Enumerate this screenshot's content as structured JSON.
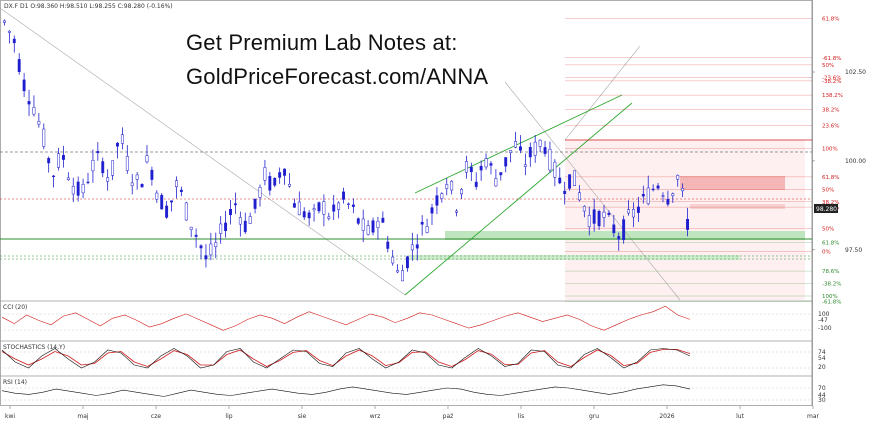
{
  "header": {
    "symbol_line": "DX.F  D1  O:98.360  H:98.510  L:98.255  C:98.280  (-0.16%)",
    "promo_line1": "Get Premium Lab Notes at:",
    "promo_line2": "GoldPriceForecast.com/ANNA"
  },
  "colors": {
    "candle": "#1f1fcf",
    "fib_red": "#d11b1b",
    "fib_green": "#2e8b2e",
    "channel": "#2fa82f",
    "cci": "#d11b1b",
    "stoch_k": "#111111",
    "stoch_d": "#d11b1b",
    "rsi": "#111111",
    "zone_red": "#f4b6b6",
    "zone_green": "#bfe5bf"
  },
  "chart_data": [
    {
      "type": "candlestick",
      "panel": "price",
      "title": "DX.F  D1",
      "ylim": [
        96.2,
        104.3
      ],
      "x_tick_labels": [
        "kwi",
        "maj",
        "cze",
        "lip",
        "sie",
        "wrz",
        "paź",
        "lis",
        "gru",
        "2026",
        "lut",
        "mar"
      ],
      "y_tick_labels": [
        "102.50",
        "100.00",
        "97.50"
      ],
      "last_price": "98.280",
      "close_path": [
        103.9,
        103.4,
        102.2,
        101.6,
        100.7,
        99.6,
        100.2,
        99.4,
        99.0,
        99.8,
        100.1,
        99.4,
        100.8,
        99.7,
        99.3,
        100.1,
        99.0,
        98.6,
        99.4,
        98.5,
        97.9,
        97.2,
        97.6,
        98.3,
        98.8,
        98.2,
        98.6,
        99.6,
        99.2,
        100.0,
        98.9,
        98.6,
        98.3,
        98.8,
        98.4,
        98.9,
        98.7,
        98.2,
        97.9,
        98.5,
        97.6,
        96.7,
        97.3,
        97.9,
        98.3,
        99.0,
        99.5,
        98.8,
        99.8,
        99.4,
        100.1,
        99.5,
        99.9,
        100.5,
        99.9,
        100.3,
        100.6,
        99.8,
        99.3,
        99.6,
        98.9,
        98.3,
        98.5,
        98.2,
        97.9,
        98.4,
        98.7,
        99.1,
        99.4,
        99.0,
        99.6,
        98.28
      ],
      "horizontal_lines": [
        {
          "label": "61.8%",
          "y": 104.0
        },
        {
          "label": "-61.8%",
          "y": 102.9
        },
        {
          "label": "50%",
          "y": 102.7
        },
        {
          "label": "-23.6%",
          "y": 102.35
        },
        {
          "label": "-38.2%",
          "y": 102.25
        },
        {
          "label": "138.2%",
          "y": 101.85
        },
        {
          "label": "38.2%",
          "y": 101.45
        },
        {
          "label": "23.6%",
          "y": 101.0
        },
        {
          "label": "100%",
          "y": 100.35
        },
        {
          "label": "61.8%",
          "y": 99.55
        },
        {
          "label": "50%",
          "y": 99.2
        },
        {
          "label": "38.2%",
          "y": 98.85
        },
        {
          "label": "38.2%",
          "y": 98.7
        },
        {
          "label": "50%",
          "y": 98.1
        },
        {
          "label": "61.8%",
          "y": 97.7
        },
        {
          "label": "0%",
          "y": 97.45
        },
        {
          "label": "78.6%",
          "y": 96.9
        },
        {
          "label": "-38.2%",
          "y": 96.55
        },
        {
          "label": "100%",
          "y": 96.2
        },
        {
          "label": "-61.8%",
          "y": 96.05
        }
      ]
    },
    {
      "type": "line",
      "panel": "indicator",
      "title": "CCI (20)",
      "series": [
        {
          "name": "CCI (20)",
          "values": [
            40,
            -20,
            60,
            10,
            -30,
            50,
            80,
            20,
            -40,
            30,
            60,
            10,
            -50,
            -20,
            30,
            70,
            20,
            -30,
            -80,
            -40,
            20,
            60,
            30,
            -20,
            40,
            90,
            50,
            10,
            -30,
            20,
            70,
            40,
            -10,
            30,
            80,
            60,
            20,
            -20,
            -60,
            -30,
            10,
            50,
            80,
            40,
            0,
            30,
            60,
            20,
            -40,
            -80,
            -30,
            20,
            60,
            90,
            140,
            60,
            20
          ]
        }
      ],
      "y_tick_labels": [
        "100",
        "-47",
        "-100"
      ]
    },
    {
      "type": "line",
      "panel": "indicator",
      "title": "STOCHASTICS (14,Y)",
      "series": [
        {
          "name": "%K",
          "values": [
            80,
            40,
            20,
            60,
            85,
            50,
            20,
            40,
            80,
            70,
            30,
            20,
            60,
            85,
            60,
            20,
            30,
            75,
            85,
            40,
            20,
            50,
            80,
            75,
            35,
            25,
            70,
            85,
            50,
            20,
            40,
            80,
            70,
            30,
            20,
            55,
            85,
            60,
            25,
            35,
            80,
            75,
            30,
            20,
            65,
            85,
            55,
            20,
            40,
            80,
            85,
            80,
            60
          ]
        },
        {
          "name": "%D",
          "values": [
            75,
            50,
            30,
            50,
            75,
            60,
            30,
            35,
            70,
            75,
            40,
            25,
            50,
            78,
            65,
            30,
            30,
            65,
            80,
            50,
            25,
            45,
            72,
            78,
            45,
            28,
            60,
            80,
            60,
            28,
            38,
            72,
            74,
            40,
            25,
            48,
            78,
            66,
            32,
            32,
            70,
            78,
            40,
            25,
            55,
            80,
            62,
            28,
            36,
            72,
            82,
            82,
            68
          ]
        }
      ],
      "y_tick_labels": [
        "74",
        "54",
        "20"
      ]
    },
    {
      "type": "line",
      "panel": "indicator",
      "title": "RSI (14)",
      "series": [
        {
          "name": "RSI (14)",
          "values": [
            55,
            50,
            48,
            52,
            58,
            54,
            50,
            46,
            50,
            56,
            52,
            48,
            44,
            50,
            56,
            52,
            48,
            46,
            50,
            54,
            58,
            54,
            50,
            48,
            52,
            58,
            62,
            58,
            54,
            50,
            48,
            52,
            56,
            60,
            58,
            52,
            48,
            46,
            50,
            54,
            58,
            62,
            60,
            56,
            52,
            48,
            52,
            58,
            62,
            66,
            64,
            58
          ]
        }
      ],
      "y_tick_labels": [
        "70",
        "44",
        "30"
      ]
    }
  ]
}
